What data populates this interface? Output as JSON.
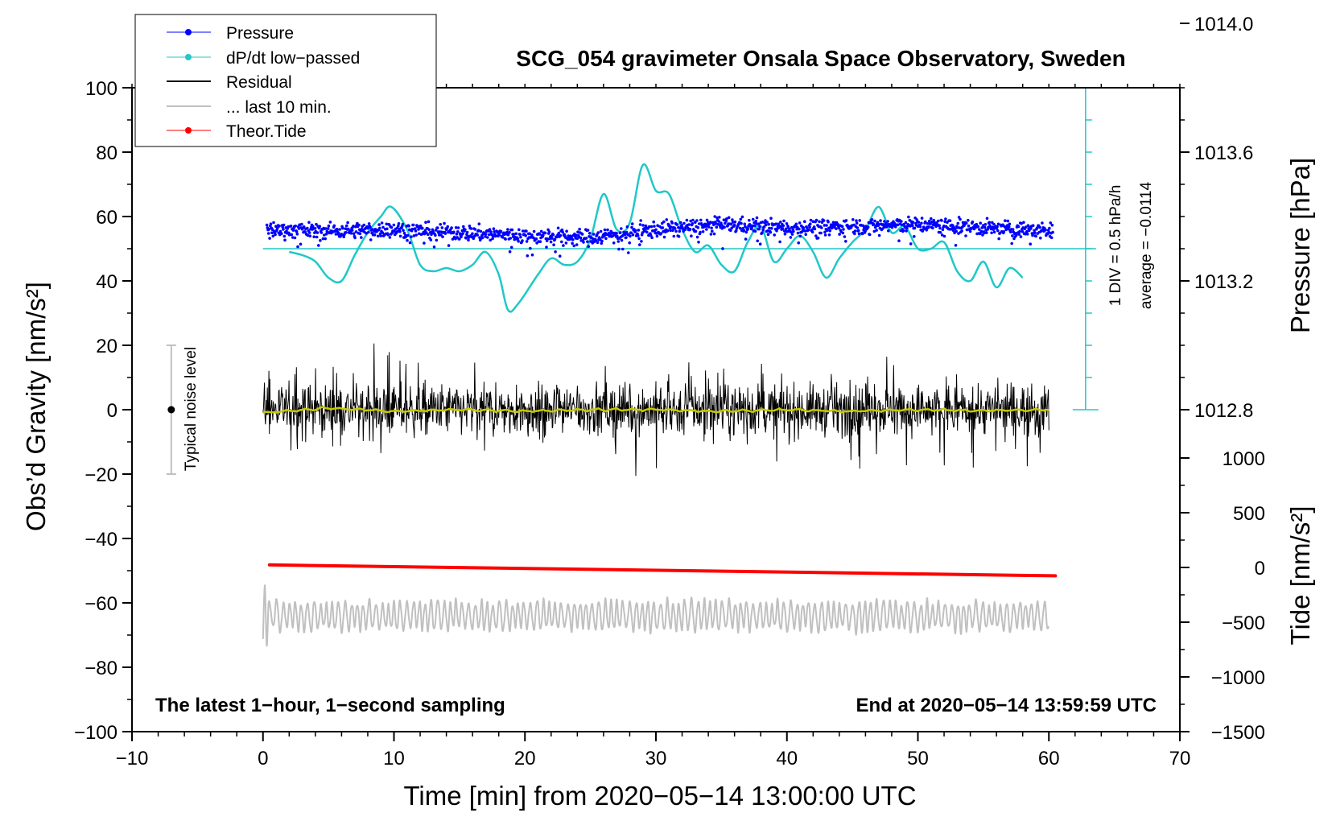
{
  "chart_data": {
    "type": "line",
    "title": "SCG_054 gravimeter Onsala Space Observatory, Sweden",
    "xlabel": "Time [min] from 2020−05−14 13:00:00 UTC",
    "ylabel_left": "Obs’d Gravity [nm/s²]",
    "ylabel_right_top": "Pressure [hPa]",
    "ylabel_right_bottom": "Tide [nm/s²]",
    "xlim": [
      -10,
      70
    ],
    "ylim": [
      -100,
      100
    ],
    "xticks": [
      -10,
      0,
      10,
      20,
      30,
      40,
      50,
      60,
      70
    ],
    "xtick_labels": [
      "−10",
      "0",
      "10",
      "20",
      "30",
      "40",
      "50",
      "60",
      "70"
    ],
    "yticks": [
      -100,
      -80,
      -60,
      -40,
      -20,
      0,
      20,
      40,
      60,
      80,
      100
    ],
    "ytick_labels": [
      "−100",
      "−80",
      "−60",
      "−40",
      "−20",
      "0",
      "20",
      "40",
      "60",
      "80",
      "100"
    ],
    "pressure_axis": {
      "ticks": [
        1012.8,
        1013.2,
        1013.6,
        1014.0
      ],
      "tick_labels": [
        "1012.8",
        "1013.2",
        "1013.6",
        "1014.0"
      ],
      "ref_value": 1013.4,
      "ref_gravity_position": 60,
      "hpa_per_gravity_unit": 0.01
    },
    "tide_axis": {
      "ticks": [
        -1500,
        -1000,
        -500,
        0,
        500,
        1000
      ],
      "tick_labels": [
        "−1500",
        "−1000",
        "−500",
        "0",
        "500",
        "1000"
      ],
      "gravity_range": [
        -100,
        -15
      ],
      "value_range": [
        -1500,
        1000
      ]
    },
    "legend": {
      "position": "top-left",
      "entries": [
        {
          "label": "Pressure",
          "color": "#0000ff",
          "marker": "dot"
        },
        {
          "label": "dP/dt low−passed",
          "color": "#20c8c8",
          "marker": "dot"
        },
        {
          "label": "Residual",
          "color": "#000000",
          "marker": "line"
        },
        {
          "label": "... last 10 min.",
          "color": "#c0c0c0",
          "marker": "line"
        },
        {
          "label": "Theor.Tide",
          "color": "#ff0000",
          "marker": "dot"
        }
      ]
    },
    "dpdt_scale": {
      "label": "1 DIV = 0.5 hPa/h",
      "average_label": "average = −0.0114",
      "baseline_y": 50,
      "y_top": 100,
      "y_bottom": 0,
      "div_step": 10,
      "x": 62.8
    },
    "noise_bar": {
      "label": "Typical noise level",
      "x": -7,
      "y_center": 0,
      "y_low": -20,
      "y_high": 20
    },
    "series": [
      {
        "name": "Pressure",
        "color": "#0000ff",
        "style": "dots",
        "x": [
          0,
          5,
          10,
          15,
          20,
          25,
          30,
          35,
          40,
          45,
          50,
          55,
          60
        ],
        "y": [
          56,
          55.5,
          56,
          55,
          54,
          53.5,
          56,
          57.5,
          56.5,
          57,
          57.5,
          56.5,
          55.5
        ],
        "scatter": 2.0
      },
      {
        "name": "dP/dt low−passed",
        "color": "#20c8c8",
        "style": "line",
        "x": [
          2,
          3,
          4,
          5,
          6,
          7,
          8,
          9,
          9.8,
          11,
          12,
          13,
          14,
          15,
          16,
          17,
          18,
          18.7,
          19.5,
          21,
          22,
          23,
          24,
          25,
          26,
          27,
          28,
          29,
          30,
          31,
          32,
          33,
          34,
          35,
          36,
          37,
          38,
          39,
          40,
          41,
          42,
          43,
          44,
          45,
          46,
          47,
          48,
          49,
          50,
          51,
          52,
          53,
          54,
          55,
          56,
          57,
          58
        ],
        "y": [
          49,
          48,
          46,
          41,
          40,
          48,
          55,
          60,
          63,
          56,
          45,
          43,
          44,
          43,
          45,
          49,
          42,
          31,
          33,
          42,
          47,
          45,
          46,
          53,
          67,
          56,
          58,
          76,
          68,
          67,
          56,
          49,
          51,
          45,
          43,
          52,
          57,
          46,
          50,
          54,
          49,
          41,
          47,
          52,
          56,
          63,
          55,
          57,
          50,
          50,
          52,
          43,
          40,
          46,
          38,
          44,
          41
        ]
      },
      {
        "name": "Residual",
        "color": "#000000",
        "style": "noise",
        "x_range": [
          0,
          60
        ],
        "mean": 0,
        "amplitude": 7
      },
      {
        "name": "Residual smoothed",
        "color": "#c8c800",
        "style": "line",
        "x": [
          0,
          5,
          10,
          15,
          20,
          25,
          30,
          35,
          40,
          45,
          50,
          55,
          60
        ],
        "y": [
          -1,
          0.5,
          -0.5,
          0,
          -0.5,
          0,
          0,
          -0.5,
          0,
          -0.5,
          0,
          -0.3,
          0
        ]
      },
      {
        "name": "... last 10 min.",
        "color": "#c0c0c0",
        "style": "oscillation",
        "x_range": [
          0,
          60
        ],
        "mean": -64,
        "amplitude": 6
      },
      {
        "name": "Theor.Tide",
        "color": "#ff0000",
        "style": "thick-line",
        "x": [
          0.5,
          60.5
        ],
        "y": [
          -48.2,
          -51.6
        ]
      }
    ],
    "annotations": {
      "bottom_left": "The latest 1−hour, 1−second sampling",
      "bottom_right": "End at 2020−05−14 13:59:59 UTC"
    }
  }
}
